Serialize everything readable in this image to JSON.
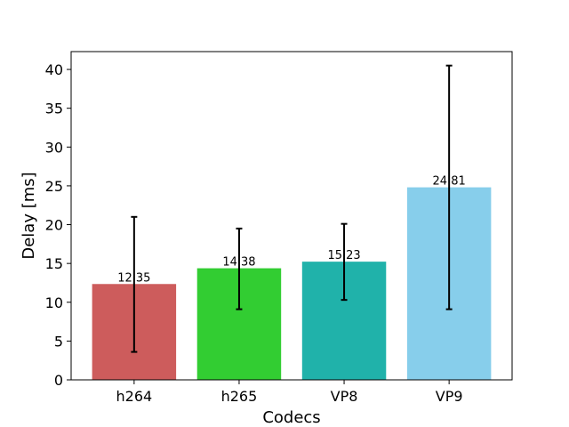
{
  "chart_data": {
    "type": "bar",
    "title": "",
    "xlabel": "Codecs",
    "ylabel": "Delay [ms]",
    "categories": [
      "h264",
      "h265",
      "VP8",
      "VP9"
    ],
    "values": [
      12.35,
      14.38,
      15.23,
      24.81
    ],
    "value_labels": [
      "12.35",
      "14.38",
      "15.23",
      "24.81"
    ],
    "error_low": [
      3.6,
      9.1,
      10.3,
      9.1
    ],
    "error_high": [
      21.0,
      19.5,
      20.1,
      40.5
    ],
    "colors": [
      "#cd5c5c",
      "#32cd32",
      "#20b2aa",
      "#87ceeb"
    ],
    "ylim": [
      0,
      42.3
    ],
    "yticks": [
      0,
      5,
      10,
      15,
      20,
      25,
      30,
      35,
      40
    ],
    "grid": false,
    "legend": "none"
  }
}
